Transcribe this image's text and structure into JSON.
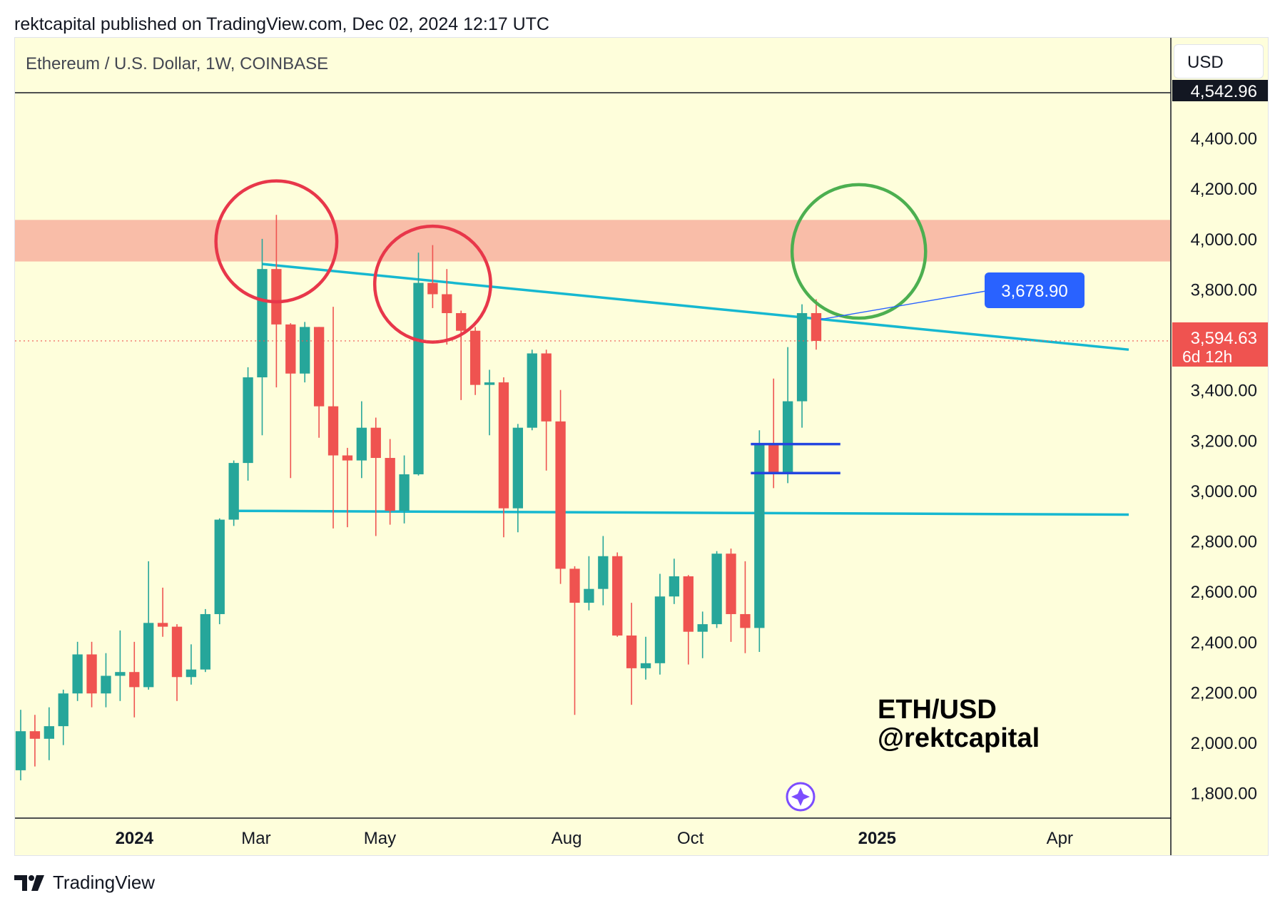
{
  "header": {
    "publisher_line": "rektcapital published on TradingView.com, Dec 02, 2024 12:17 UTC"
  },
  "symbol": {
    "title": "Ethereum / U.S. Dollar, 1W, COINBASE"
  },
  "currency_button": {
    "label": "USD"
  },
  "footer": {
    "brand": "TradingView"
  },
  "colors": {
    "background": "#fefedb",
    "bull": "#26a69a",
    "bear": "#ef5350",
    "trendline": "#16b8d0",
    "resistance_zone": "#f9bda8",
    "red_circle": "#e8374a",
    "green_circle": "#4caf50",
    "range_lines": "#2446e0",
    "price_label": "#2962ff",
    "last_price": "#ef5350"
  },
  "chart_data": {
    "type": "candlestick",
    "title": "Ethereum / U.S. Dollar, 1W, COINBASE",
    "timeframe": "1W",
    "ylim": [
      1700,
      4580
    ],
    "y_ticks": [
      "4,400.00",
      "4,200.00",
      "4,000.00",
      "3,800.00",
      "3,600.00",
      "3,400.00",
      "3,200.00",
      "3,000.00",
      "2,800.00",
      "2,600.00",
      "2,400.00",
      "2,200.00",
      "2,000.00",
      "1,800.00"
    ],
    "x_ticks": [
      {
        "label": "2024",
        "bold": true,
        "date": "2024-01-01"
      },
      {
        "label": "Mar",
        "bold": false,
        "date": "2024-03-01"
      },
      {
        "label": "May",
        "bold": false,
        "date": "2024-05-01"
      },
      {
        "label": "Aug",
        "bold": false,
        "date": "2024-08-01"
      },
      {
        "label": "Oct",
        "bold": false,
        "date": "2024-10-01"
      },
      {
        "label": "2025",
        "bold": true,
        "date": "2025-01-01"
      },
      {
        "label": "Apr",
        "bold": false,
        "date": "2025-04-01"
      }
    ],
    "candles": [
      {
        "date": "2023-11-06",
        "o": 1890,
        "h": 2130,
        "l": 1850,
        "c": 2045
      },
      {
        "date": "2023-11-13",
        "o": 2045,
        "h": 2110,
        "l": 1905,
        "c": 2015
      },
      {
        "date": "2023-11-20",
        "o": 2015,
        "h": 2140,
        "l": 1930,
        "c": 2065
      },
      {
        "date": "2023-11-27",
        "o": 2065,
        "h": 2210,
        "l": 1990,
        "c": 2195
      },
      {
        "date": "2023-12-04",
        "o": 2195,
        "h": 2400,
        "l": 2165,
        "c": 2350
      },
      {
        "date": "2023-12-11",
        "o": 2350,
        "h": 2400,
        "l": 2140,
        "c": 2195
      },
      {
        "date": "2023-12-18",
        "o": 2195,
        "h": 2355,
        "l": 2140,
        "c": 2265
      },
      {
        "date": "2023-12-25",
        "o": 2265,
        "h": 2445,
        "l": 2165,
        "c": 2280
      },
      {
        "date": "2024-01-01",
        "o": 2280,
        "h": 2400,
        "l": 2100,
        "c": 2220
      },
      {
        "date": "2024-01-08",
        "o": 2220,
        "h": 2720,
        "l": 2210,
        "c": 2475
      },
      {
        "date": "2024-01-15",
        "o": 2475,
        "h": 2615,
        "l": 2420,
        "c": 2460
      },
      {
        "date": "2024-01-22",
        "o": 2460,
        "h": 2470,
        "l": 2165,
        "c": 2260
      },
      {
        "date": "2024-01-29",
        "o": 2260,
        "h": 2390,
        "l": 2230,
        "c": 2290
      },
      {
        "date": "2024-02-05",
        "o": 2290,
        "h": 2530,
        "l": 2280,
        "c": 2510
      },
      {
        "date": "2024-02-12",
        "o": 2510,
        "h": 2890,
        "l": 2470,
        "c": 2885
      },
      {
        "date": "2024-02-19",
        "o": 2885,
        "h": 3120,
        "l": 2860,
        "c": 3110
      },
      {
        "date": "2024-02-26",
        "o": 3110,
        "h": 3490,
        "l": 3040,
        "c": 3450
      },
      {
        "date": "2024-03-04",
        "o": 3450,
        "h": 4000,
        "l": 3220,
        "c": 3880
      },
      {
        "date": "2024-03-11",
        "o": 3880,
        "h": 4095,
        "l": 3410,
        "c": 3660
      },
      {
        "date": "2024-03-18",
        "o": 3660,
        "h": 3665,
        "l": 3050,
        "c": 3465
      },
      {
        "date": "2024-03-25",
        "o": 3465,
        "h": 3670,
        "l": 3430,
        "c": 3650
      },
      {
        "date": "2024-04-01",
        "o": 3650,
        "h": 3650,
        "l": 3210,
        "c": 3335
      },
      {
        "date": "2024-04-08",
        "o": 3335,
        "h": 3730,
        "l": 2850,
        "c": 3140
      },
      {
        "date": "2024-04-15",
        "o": 3140,
        "h": 3170,
        "l": 2855,
        "c": 3120
      },
      {
        "date": "2024-04-22",
        "o": 3120,
        "h": 3355,
        "l": 3050,
        "c": 3250
      },
      {
        "date": "2024-04-29",
        "o": 3250,
        "h": 3290,
        "l": 2820,
        "c": 3130
      },
      {
        "date": "2024-05-06",
        "o": 3130,
        "h": 3205,
        "l": 2865,
        "c": 2920
      },
      {
        "date": "2024-05-13",
        "o": 2920,
        "h": 3140,
        "l": 2870,
        "c": 3065
      },
      {
        "date": "2024-05-20",
        "o": 3065,
        "h": 3945,
        "l": 3060,
        "c": 3825
      },
      {
        "date": "2024-05-27",
        "o": 3825,
        "h": 3975,
        "l": 3725,
        "c": 3780
      },
      {
        "date": "2024-06-03",
        "o": 3780,
        "h": 3880,
        "l": 3580,
        "c": 3705
      },
      {
        "date": "2024-06-10",
        "o": 3705,
        "h": 3715,
        "l": 3360,
        "c": 3635
      },
      {
        "date": "2024-06-17",
        "o": 3635,
        "h": 3650,
        "l": 3380,
        "c": 3420
      },
      {
        "date": "2024-06-24",
        "o": 3420,
        "h": 3480,
        "l": 3220,
        "c": 3430
      },
      {
        "date": "2024-07-01",
        "o": 3430,
        "h": 3450,
        "l": 2815,
        "c": 2930
      },
      {
        "date": "2024-07-08",
        "o": 2930,
        "h": 3265,
        "l": 2835,
        "c": 3250
      },
      {
        "date": "2024-07-15",
        "o": 3250,
        "h": 3560,
        "l": 3240,
        "c": 3545
      },
      {
        "date": "2024-07-22",
        "o": 3545,
        "h": 3560,
        "l": 3080,
        "c": 3275
      },
      {
        "date": "2024-07-29",
        "o": 3275,
        "h": 3400,
        "l": 2630,
        "c": 2690
      },
      {
        "date": "2024-08-05",
        "o": 2690,
        "h": 2700,
        "l": 2110,
        "c": 2555
      },
      {
        "date": "2024-08-12",
        "o": 2555,
        "h": 2740,
        "l": 2525,
        "c": 2610
      },
      {
        "date": "2024-08-19",
        "o": 2610,
        "h": 2820,
        "l": 2545,
        "c": 2740
      },
      {
        "date": "2024-08-26",
        "o": 2740,
        "h": 2755,
        "l": 2420,
        "c": 2425
      },
      {
        "date": "2024-09-02",
        "o": 2425,
        "h": 2555,
        "l": 2150,
        "c": 2295
      },
      {
        "date": "2024-09-09",
        "o": 2295,
        "h": 2420,
        "l": 2250,
        "c": 2315
      },
      {
        "date": "2024-09-16",
        "o": 2315,
        "h": 2670,
        "l": 2270,
        "c": 2580
      },
      {
        "date": "2024-09-23",
        "o": 2580,
        "h": 2730,
        "l": 2550,
        "c": 2660
      },
      {
        "date": "2024-09-30",
        "o": 2660,
        "h": 2665,
        "l": 2310,
        "c": 2440
      },
      {
        "date": "2024-10-07",
        "o": 2440,
        "h": 2520,
        "l": 2335,
        "c": 2470
      },
      {
        "date": "2024-10-14",
        "o": 2470,
        "h": 2760,
        "l": 2455,
        "c": 2750
      },
      {
        "date": "2024-10-21",
        "o": 2750,
        "h": 2770,
        "l": 2400,
        "c": 2510
      },
      {
        "date": "2024-10-28",
        "o": 2510,
        "h": 2720,
        "l": 2355,
        "c": 2455
      },
      {
        "date": "2024-11-04",
        "o": 2455,
        "h": 3240,
        "l": 2360,
        "c": 3185
      },
      {
        "date": "2024-11-11",
        "o": 3185,
        "h": 3445,
        "l": 3010,
        "c": 3070
      },
      {
        "date": "2024-11-18",
        "o": 3070,
        "h": 3570,
        "l": 3030,
        "c": 3355
      },
      {
        "date": "2024-11-25",
        "o": 3355,
        "h": 3740,
        "l": 3250,
        "c": 3705
      },
      {
        "date": "2024-12-02",
        "o": 3705,
        "h": 3760,
        "l": 3560,
        "c": 3594.63
      }
    ],
    "top_label": "4,542.96",
    "last_price": {
      "value": "3,594.63",
      "countdown": "6d 12h"
    },
    "price_label": {
      "value": "3,678.90"
    },
    "annotation": {
      "line1": "ETH/USD",
      "line2": "@rektcapital"
    },
    "trendlines": [
      {
        "name": "descending-resistance-trendline",
        "from": [
          "2024-03-04",
          3900
        ],
        "to": [
          "2025-05-05",
          3560
        ]
      },
      {
        "name": "horizontal-support-trendline",
        "from": [
          "2024-02-19",
          2920
        ],
        "to": [
          "2025-05-05",
          2905
        ]
      }
    ],
    "resistance_zone": [
      3910,
      4075
    ],
    "range_box": {
      "from": "2024-11-04",
      "to": "2024-12-16",
      "high": 3185,
      "low": 3070
    },
    "red_circles": [
      {
        "center": [
          "2024-03-11",
          3990
        ],
        "radius_price": 240
      },
      {
        "center": [
          "2024-05-27",
          3820
        ],
        "radius_price": 230
      }
    ],
    "green_circle": {
      "center": [
        "2024-12-23",
        3950
      ],
      "radius_price": 265
    }
  }
}
